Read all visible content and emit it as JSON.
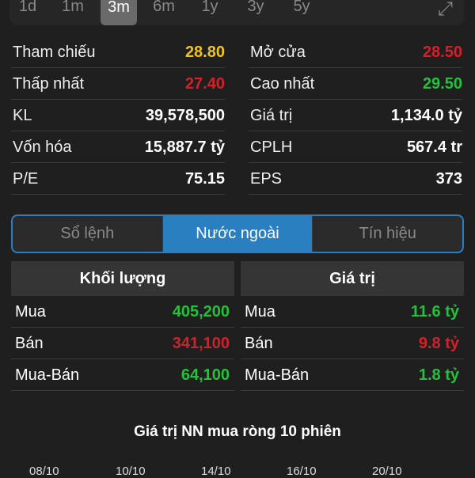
{
  "range": {
    "buttons": [
      "1d",
      "1m",
      "3m",
      "6m",
      "1y",
      "3y",
      "5y"
    ],
    "active": "3m",
    "expand_icon": "expand-arrows-icon"
  },
  "stats": {
    "left": [
      {
        "label": "Tham chiếu",
        "value": "28.80",
        "color": "#f0c419"
      },
      {
        "label": "Thấp nhất",
        "value": "27.40",
        "color": "#d4202a"
      },
      {
        "label": "KL",
        "value": "39,578,500",
        "color": "#ffffff"
      },
      {
        "label": "Vốn hóa",
        "value": "15,887.7 tỷ",
        "color": "#ffffff"
      },
      {
        "label": "P/E",
        "value": "75.15",
        "color": "#ffffff"
      }
    ],
    "right": [
      {
        "label": "Mở cửa",
        "value": "28.50",
        "color": "#d4202a"
      },
      {
        "label": "Cao nhất",
        "value": "29.50",
        "color": "#23c23a"
      },
      {
        "label": "Giá trị",
        "value": "1,134.0 tỷ",
        "color": "#ffffff"
      },
      {
        "label": "CPLH",
        "value": "567.4 tr",
        "color": "#ffffff"
      },
      {
        "label": "EPS",
        "value": "373",
        "color": "#ffffff"
      }
    ]
  },
  "tabs": [
    "Sổ lệnh",
    "Nước ngoài",
    "Tín hiệu"
  ],
  "active_tab": "Nước ngoài",
  "volume": {
    "header": "Khối lượng",
    "rows": [
      {
        "label": "Mua",
        "value": "405,200",
        "color": "#23c23a"
      },
      {
        "label": "Bán",
        "value": "341,100",
        "color": "#d4202a"
      },
      {
        "label": "Mua-Bán",
        "value": "64,100",
        "color": "#23c23a"
      }
    ]
  },
  "value": {
    "header": "Giá trị",
    "rows": [
      {
        "label": "Mua",
        "value": "11.6 tỷ",
        "color": "#23c23a"
      },
      {
        "label": "Bán",
        "value": "9.8 tỷ",
        "color": "#d4202a"
      },
      {
        "label": "Mua-Bán",
        "value": "1.8 tỷ",
        "color": "#23c23a"
      }
    ]
  },
  "chart": {
    "title": "Giá trị NN mua ròng 10 phiên",
    "x_labels": [
      "08/10",
      "10/10",
      "14/10",
      "16/10",
      "20/10"
    ]
  }
}
